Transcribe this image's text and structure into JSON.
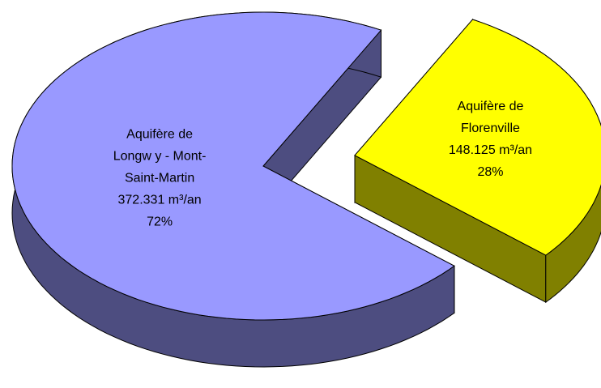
{
  "chart_data": {
    "type": "pie",
    "categories": [
      "Aquifère de Longw y - Mont-Saint-Martin",
      "Aquifère de Florenville"
    ],
    "values": [
      372331,
      148125
    ],
    "value_labels": [
      "372.331 m³/an",
      "148.125 m³/an"
    ],
    "percentages": [
      72,
      28
    ],
    "percentage_labels": [
      "72%",
      "28%"
    ],
    "colors": [
      "#9999ff",
      "#ffff00"
    ],
    "exploded": [
      false,
      true
    ]
  }
}
